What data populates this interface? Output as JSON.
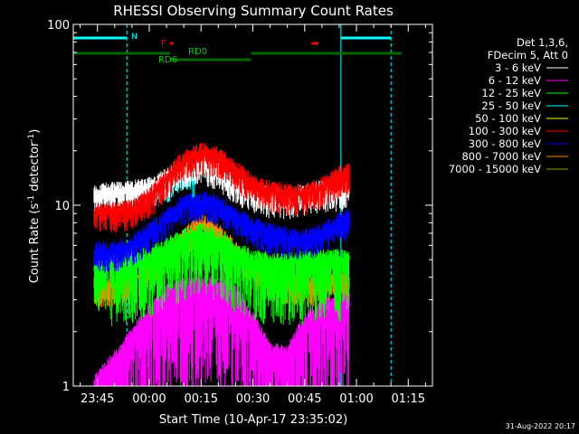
{
  "chart_data": {
    "type": "line",
    "title": "RHESSI Observing Summary Count Rates",
    "xlabel": "Start Time (10-Apr-17 23:35:02)",
    "ylabel_main": "Count Rate (s",
    "ylabel_sup": "-1",
    "ylabel_tail": " detector",
    "ylabel_sup2": "-1",
    "ylabel_close": ")",
    "y_scale": "log",
    "ylim": [
      1,
      100
    ],
    "xlim_minutes": [
      -22,
      82
    ],
    "y_ticks": [
      {
        "value": 1,
        "label": "1"
      },
      {
        "value": 10,
        "label": "10"
      },
      {
        "value": 100,
        "label": "100"
      }
    ],
    "x_ticks": [
      {
        "minutes": -15,
        "label": "23:45"
      },
      {
        "minutes": 0,
        "label": "00:00"
      },
      {
        "minutes": 15,
        "label": "00:15"
      },
      {
        "minutes": 30,
        "label": "00:30"
      },
      {
        "minutes": 45,
        "label": "00:45"
      },
      {
        "minutes": 60,
        "label": "01:00"
      },
      {
        "minutes": 75,
        "label": "01:15"
      }
    ],
    "legend_header": [
      "Det 1,3,6,",
      "FDecim 5, Att 0"
    ],
    "legend_position": "right",
    "series": [
      {
        "name": "3 - 6 keV",
        "color": "#ffffff",
        "points": [
          [
            -16,
            11.5
          ],
          [
            -10,
            11.8
          ],
          [
            -5,
            12
          ],
          [
            0,
            12.5
          ],
          [
            5,
            14
          ],
          [
            10,
            16
          ],
          [
            15,
            17
          ],
          [
            20,
            15.5
          ],
          [
            25,
            13
          ],
          [
            30,
            12
          ],
          [
            35,
            11
          ],
          [
            40,
            11
          ],
          [
            45,
            11.5
          ],
          [
            50,
            12
          ],
          [
            55,
            12
          ],
          [
            58,
            12
          ]
        ]
      },
      {
        "name": "6 - 12 keV",
        "color": "#ff00ff",
        "points": [
          [
            -16,
            1
          ],
          [
            -8,
            1.5
          ],
          [
            0,
            2.5
          ],
          [
            5,
            3.2
          ],
          [
            10,
            3.5
          ],
          [
            15,
            3.6
          ],
          [
            20,
            3.5
          ],
          [
            25,
            3.2
          ],
          [
            30,
            2.3
          ],
          [
            35,
            1.5
          ],
          [
            40,
            1.5
          ],
          [
            45,
            2.2
          ],
          [
            50,
            2.6
          ],
          [
            55,
            2.9
          ],
          [
            58,
            2.9
          ]
        ]
      },
      {
        "name": "12 - 25 keV",
        "color": "#00ff00",
        "points": [
          [
            -16,
            4.8
          ],
          [
            -10,
            4.8
          ],
          [
            -5,
            4.9
          ],
          [
            0,
            5.2
          ],
          [
            5,
            5.8
          ],
          [
            10,
            6.5
          ],
          [
            15,
            7
          ],
          [
            20,
            6.5
          ],
          [
            25,
            5.5
          ],
          [
            30,
            5
          ],
          [
            35,
            4.8
          ],
          [
            40,
            4.8
          ],
          [
            45,
            4.9
          ],
          [
            50,
            5
          ],
          [
            55,
            5
          ],
          [
            58,
            5
          ]
        ]
      },
      {
        "name": "25 - 50 keV",
        "color": "#00ffff",
        "points": [
          [
            5,
            13
          ],
          [
            8,
            15
          ],
          [
            11,
            16
          ],
          [
            13,
            14
          ]
        ]
      },
      {
        "name": "50 - 100 keV",
        "color": "#ffff00",
        "points": []
      },
      {
        "name": "100 - 300 keV",
        "color": "#ff0000",
        "points": [
          [
            -16,
            9
          ],
          [
            -10,
            9.2
          ],
          [
            -5,
            9.5
          ],
          [
            0,
            11
          ],
          [
            5,
            14
          ],
          [
            10,
            17.5
          ],
          [
            15,
            19.5
          ],
          [
            20,
            18.5
          ],
          [
            25,
            15.5
          ],
          [
            30,
            13
          ],
          [
            35,
            12
          ],
          [
            40,
            11.5
          ],
          [
            45,
            11.5
          ],
          [
            50,
            12.5
          ],
          [
            55,
            14.5
          ],
          [
            58,
            15
          ]
        ]
      },
      {
        "name": "300 - 800 keV",
        "color": "#0000ff",
        "points": [
          [
            -16,
            5.5
          ],
          [
            -10,
            5.6
          ],
          [
            -5,
            6
          ],
          [
            0,
            7
          ],
          [
            5,
            8.5
          ],
          [
            10,
            10
          ],
          [
            15,
            10.5
          ],
          [
            20,
            10
          ],
          [
            25,
            8.5
          ],
          [
            30,
            7.5
          ],
          [
            35,
            7
          ],
          [
            40,
            6.6
          ],
          [
            45,
            6.5
          ],
          [
            50,
            7
          ],
          [
            55,
            8
          ],
          [
            58,
            8.5
          ]
        ]
      },
      {
        "name": "800 - 7000 keV",
        "color": "#ff8800",
        "points": [
          [
            -16,
            3.5
          ],
          [
            -10,
            3.6
          ],
          [
            -5,
            3.8
          ],
          [
            0,
            4.5
          ],
          [
            5,
            5.5
          ],
          [
            10,
            6.5
          ],
          [
            15,
            8
          ],
          [
            20,
            7
          ],
          [
            25,
            5.5
          ],
          [
            30,
            4.5
          ],
          [
            35,
            3.8
          ],
          [
            40,
            3.7
          ],
          [
            45,
            3.6
          ],
          [
            50,
            3.6
          ],
          [
            55,
            3.8
          ],
          [
            58,
            3.8
          ]
        ]
      },
      {
        "name": "7000 - 15000 keV",
        "color": "#999900",
        "points": []
      }
    ],
    "attenuator_bars": [
      {
        "label": "",
        "color": "#006600",
        "segments": [
          [
            -22,
            6
          ]
        ]
      },
      {
        "label": "RD6",
        "color": "#006600",
        "segments": [
          [
            6,
            29.5
          ]
        ]
      },
      {
        "label": "RD0",
        "color": "#006600",
        "segments": [
          [
            29.5,
            51.5
          ]
        ]
      },
      {
        "label": "",
        "color": "#006600",
        "segments": [
          [
            51.5,
            68
          ],
          [
            68,
            73
          ]
        ]
      }
    ],
    "night_markers": [
      {
        "label": "N",
        "color": "#00ffff",
        "segments": [
          [
            -22,
            -6.5
          ],
          [
            55.5,
            70
          ]
        ]
      }
    ],
    "flare_markers": [
      {
        "label": "F",
        "color": "#ff0000",
        "segments": [
          [
            6,
            7
          ],
          [
            47,
            49
          ]
        ]
      }
    ],
    "night_dashed_lines_minutes": [
      -6.5,
      70
    ],
    "night_solid_lines_minutes": [
      -22,
      55.5
    ],
    "footer_date": "31-Aug-2022 20:17"
  }
}
